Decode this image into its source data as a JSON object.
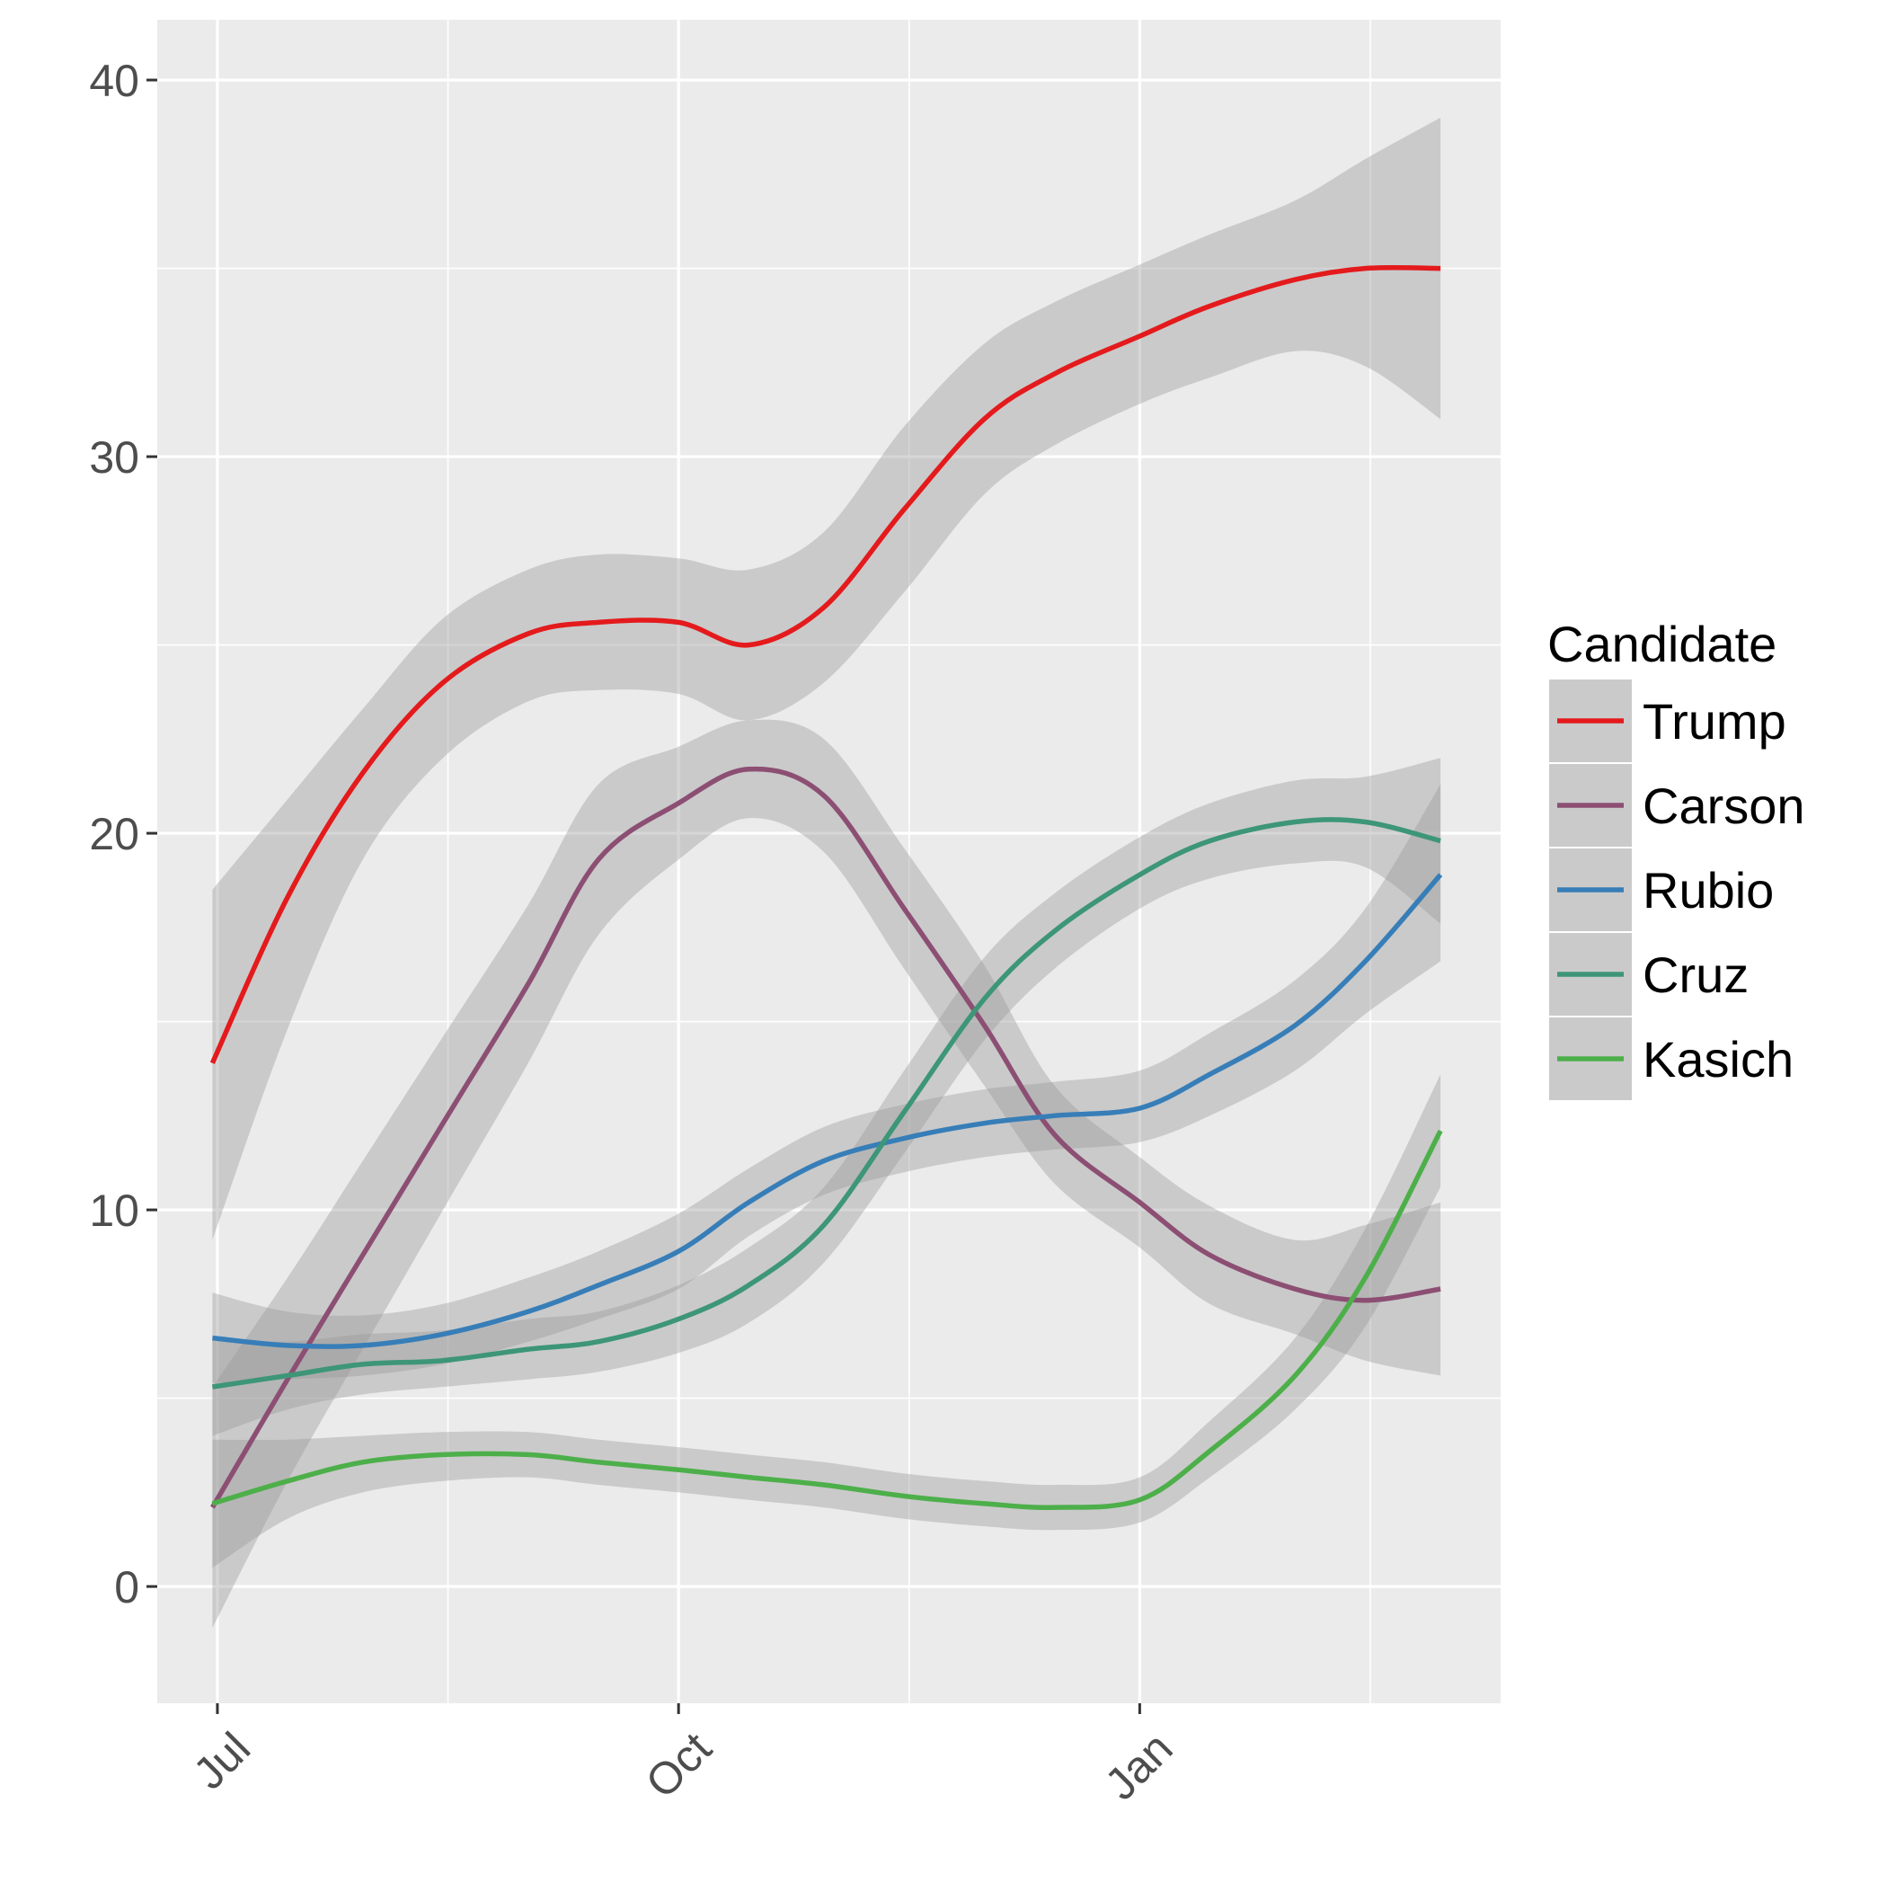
{
  "chart_data": {
    "type": "line",
    "title": "",
    "xlabel": "",
    "ylabel": "",
    "x_axis": {
      "ticks": [
        {
          "label": "Jul",
          "date": "2015-07-01"
        },
        {
          "label": "Oct",
          "date": "2015-10-01"
        },
        {
          "label": "Jan",
          "date": "2016-01-01"
        }
      ],
      "range": [
        "2015-06-19",
        "2016-03-13"
      ]
    },
    "y_axis": {
      "ticks": [
        "0",
        "10",
        "20",
        "30",
        "40"
      ],
      "tick_values": [
        0,
        10,
        20,
        30,
        40
      ],
      "range": [
        -3.1,
        41.6
      ]
    },
    "grid": true,
    "legend": {
      "title": "Candidate",
      "position": "right"
    },
    "series": [
      {
        "name": "Trump",
        "color": "#e41a1c",
        "points": [
          {
            "x": "2015-06-30",
            "y": 13.9,
            "lo": 9.2,
            "hi": 18.5
          },
          {
            "x": "2015-07-15",
            "y": 18.3,
            "lo": 14.8,
            "hi": 20.9
          },
          {
            "x": "2015-07-30",
            "y": 21.6,
            "lo": 19.3,
            "hi": 23.3
          },
          {
            "x": "2015-08-15",
            "y": 24.0,
            "lo": 22.0,
            "hi": 25.7
          },
          {
            "x": "2015-09-01",
            "y": 25.3,
            "lo": 23.5,
            "hi": 27.0
          },
          {
            "x": "2015-09-15",
            "y": 25.6,
            "lo": 23.8,
            "hi": 27.4
          },
          {
            "x": "2015-10-01",
            "y": 25.6,
            "lo": 23.7,
            "hi": 27.3
          },
          {
            "x": "2015-10-15",
            "y": 25.0,
            "lo": 23.0,
            "hi": 27.0
          },
          {
            "x": "2015-10-30",
            "y": 26.0,
            "lo": 24.0,
            "hi": 28.0
          },
          {
            "x": "2015-11-15",
            "y": 28.6,
            "lo": 26.4,
            "hi": 30.8
          },
          {
            "x": "2015-12-01",
            "y": 31.0,
            "lo": 29.0,
            "hi": 33.0
          },
          {
            "x": "2015-12-15",
            "y": 32.2,
            "lo": 30.3,
            "hi": 34.1
          },
          {
            "x": "2016-01-01",
            "y": 33.2,
            "lo": 31.4,
            "hi": 35.1
          },
          {
            "x": "2016-01-15",
            "y": 34.0,
            "lo": 32.1,
            "hi": 35.9
          },
          {
            "x": "2016-02-01",
            "y": 34.7,
            "lo": 32.8,
            "hi": 36.8
          },
          {
            "x": "2016-02-15",
            "y": 35.0,
            "lo": 32.4,
            "hi": 37.9
          },
          {
            "x": "2016-03-01",
            "y": 35.0,
            "lo": 31.0,
            "hi": 39.0
          }
        ]
      },
      {
        "name": "Carson",
        "color": "#8c4f73",
        "points": [
          {
            "x": "2015-06-30",
            "y": 2.1,
            "lo": -1.1,
            "hi": 5.3
          },
          {
            "x": "2015-07-15",
            "y": 5.5,
            "lo": 2.8,
            "hi": 8.2
          },
          {
            "x": "2015-07-30",
            "y": 8.8,
            "lo": 6.3,
            "hi": 11.3
          },
          {
            "x": "2015-08-15",
            "y": 12.3,
            "lo": 10.0,
            "hi": 14.6
          },
          {
            "x": "2015-09-01",
            "y": 16.0,
            "lo": 13.9,
            "hi": 18.1
          },
          {
            "x": "2015-09-15",
            "y": 19.3,
            "lo": 17.3,
            "hi": 21.3
          },
          {
            "x": "2015-10-01",
            "y": 20.8,
            "lo": 19.3,
            "hi": 22.3
          },
          {
            "x": "2015-10-15",
            "y": 21.7,
            "lo": 20.4,
            "hi": 23.0
          },
          {
            "x": "2015-10-30",
            "y": 21.0,
            "lo": 19.5,
            "hi": 22.5
          },
          {
            "x": "2015-11-15",
            "y": 18.0,
            "lo": 16.4,
            "hi": 19.6
          },
          {
            "x": "2015-12-01",
            "y": 14.9,
            "lo": 13.3,
            "hi": 16.5
          },
          {
            "x": "2015-12-15",
            "y": 12.0,
            "lo": 10.7,
            "hi": 13.3
          },
          {
            "x": "2016-01-01",
            "y": 10.2,
            "lo": 9.0,
            "hi": 11.4
          },
          {
            "x": "2016-01-15",
            "y": 8.8,
            "lo": 7.5,
            "hi": 10.1
          },
          {
            "x": "2016-02-01",
            "y": 7.9,
            "lo": 6.7,
            "hi": 9.2
          },
          {
            "x": "2016-02-15",
            "y": 7.6,
            "lo": 6.0,
            "hi": 9.6
          },
          {
            "x": "2016-03-01",
            "y": 7.9,
            "lo": 5.6,
            "hi": 10.2
          }
        ]
      },
      {
        "name": "Rubio",
        "color": "#377eb8",
        "points": [
          {
            "x": "2015-06-30",
            "y": 6.6,
            "lo": 5.4,
            "hi": 7.8
          },
          {
            "x": "2015-07-15",
            "y": 6.4,
            "lo": 5.5,
            "hi": 7.3
          },
          {
            "x": "2015-07-30",
            "y": 6.4,
            "lo": 5.6,
            "hi": 7.2
          },
          {
            "x": "2015-08-15",
            "y": 6.7,
            "lo": 5.9,
            "hi": 7.5
          },
          {
            "x": "2015-09-01",
            "y": 7.3,
            "lo": 6.5,
            "hi": 8.2
          },
          {
            "x": "2015-09-15",
            "y": 8.0,
            "lo": 7.1,
            "hi": 8.9
          },
          {
            "x": "2015-10-01",
            "y": 8.9,
            "lo": 7.9,
            "hi": 9.9
          },
          {
            "x": "2015-10-15",
            "y": 10.2,
            "lo": 9.3,
            "hi": 11.1
          },
          {
            "x": "2015-10-30",
            "y": 11.3,
            "lo": 10.4,
            "hi": 12.2
          },
          {
            "x": "2015-11-15",
            "y": 11.9,
            "lo": 11.0,
            "hi": 12.8
          },
          {
            "x": "2015-12-01",
            "y": 12.3,
            "lo": 11.4,
            "hi": 13.2
          },
          {
            "x": "2015-12-15",
            "y": 12.5,
            "lo": 11.6,
            "hi": 13.4
          },
          {
            "x": "2016-01-01",
            "y": 12.7,
            "lo": 11.8,
            "hi": 13.7
          },
          {
            "x": "2016-01-15",
            "y": 13.6,
            "lo": 12.5,
            "hi": 14.7
          },
          {
            "x": "2016-02-01",
            "y": 14.9,
            "lo": 13.7,
            "hi": 16.1
          },
          {
            "x": "2016-02-15",
            "y": 16.6,
            "lo": 15.2,
            "hi": 18.0
          },
          {
            "x": "2016-03-01",
            "y": 18.9,
            "lo": 16.6,
            "hi": 21.3
          }
        ]
      },
      {
        "name": "Cruz",
        "color": "#3d9677",
        "points": [
          {
            "x": "2015-06-30",
            "y": 5.3,
            "lo": 4.0,
            "hi": 6.6
          },
          {
            "x": "2015-07-15",
            "y": 5.6,
            "lo": 4.7,
            "hi": 6.5
          },
          {
            "x": "2015-07-30",
            "y": 5.9,
            "lo": 5.1,
            "hi": 6.7
          },
          {
            "x": "2015-08-15",
            "y": 6.0,
            "lo": 5.3,
            "hi": 6.8
          },
          {
            "x": "2015-09-01",
            "y": 6.3,
            "lo": 5.5,
            "hi": 7.1
          },
          {
            "x": "2015-09-15",
            "y": 6.5,
            "lo": 5.7,
            "hi": 7.3
          },
          {
            "x": "2015-10-01",
            "y": 7.1,
            "lo": 6.2,
            "hi": 8.0
          },
          {
            "x": "2015-10-15",
            "y": 8.0,
            "lo": 7.0,
            "hi": 9.0
          },
          {
            "x": "2015-10-30",
            "y": 9.6,
            "lo": 8.6,
            "hi": 10.6
          },
          {
            "x": "2015-11-15",
            "y": 12.6,
            "lo": 11.5,
            "hi": 13.7
          },
          {
            "x": "2015-12-01",
            "y": 15.6,
            "lo": 14.5,
            "hi": 16.7
          },
          {
            "x": "2015-12-15",
            "y": 17.4,
            "lo": 16.4,
            "hi": 18.4
          },
          {
            "x": "2016-01-01",
            "y": 18.9,
            "lo": 18.0,
            "hi": 19.9
          },
          {
            "x": "2016-01-15",
            "y": 19.8,
            "lo": 18.8,
            "hi": 20.8
          },
          {
            "x": "2016-02-01",
            "y": 20.3,
            "lo": 19.2,
            "hi": 21.4
          },
          {
            "x": "2016-02-15",
            "y": 20.3,
            "lo": 19.1,
            "hi": 21.5
          },
          {
            "x": "2016-03-01",
            "y": 19.8,
            "lo": 17.6,
            "hi": 22.0
          }
        ]
      },
      {
        "name": "Kasich",
        "color": "#4daf4a",
        "points": [
          {
            "x": "2015-06-30",
            "y": 2.2,
            "lo": 0.5,
            "hi": 3.9
          },
          {
            "x": "2015-07-15",
            "y": 2.8,
            "lo": 1.8,
            "hi": 3.9
          },
          {
            "x": "2015-07-30",
            "y": 3.3,
            "lo": 2.5,
            "hi": 4.0
          },
          {
            "x": "2015-08-15",
            "y": 3.5,
            "lo": 2.8,
            "hi": 4.1
          },
          {
            "x": "2015-09-01",
            "y": 3.5,
            "lo": 2.9,
            "hi": 4.1
          },
          {
            "x": "2015-09-15",
            "y": 3.3,
            "lo": 2.7,
            "hi": 3.9
          },
          {
            "x": "2015-10-01",
            "y": 3.1,
            "lo": 2.5,
            "hi": 3.7
          },
          {
            "x": "2015-10-15",
            "y": 2.9,
            "lo": 2.3,
            "hi": 3.5
          },
          {
            "x": "2015-10-30",
            "y": 2.7,
            "lo": 2.1,
            "hi": 3.3
          },
          {
            "x": "2015-11-15",
            "y": 2.4,
            "lo": 1.8,
            "hi": 3.0
          },
          {
            "x": "2015-12-01",
            "y": 2.2,
            "lo": 1.6,
            "hi": 2.8
          },
          {
            "x": "2015-12-15",
            "y": 2.1,
            "lo": 1.5,
            "hi": 2.7
          },
          {
            "x": "2016-01-01",
            "y": 2.3,
            "lo": 1.7,
            "hi": 2.9
          },
          {
            "x": "2016-01-15",
            "y": 3.6,
            "lo": 2.9,
            "hi": 4.4
          },
          {
            "x": "2016-02-01",
            "y": 5.6,
            "lo": 4.7,
            "hi": 6.6
          },
          {
            "x": "2016-02-15",
            "y": 8.2,
            "lo": 6.9,
            "hi": 9.5
          },
          {
            "x": "2016-03-01",
            "y": 12.1,
            "lo": 10.6,
            "hi": 13.6
          }
        ]
      }
    ]
  }
}
